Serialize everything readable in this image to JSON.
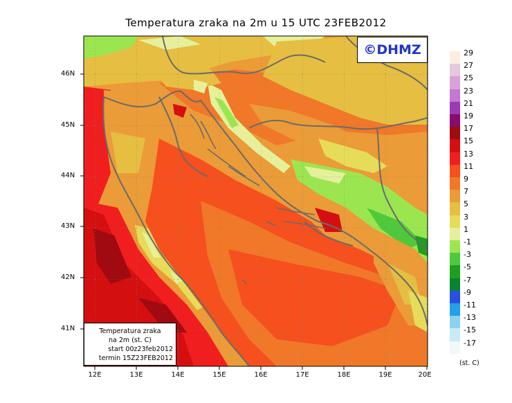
{
  "title": "Temperatura zraka na 2m u 15 UTC 23FEB2012",
  "logo": "©DHMZ",
  "info": {
    "line1": "Temperatura zraka",
    "line2": "na 2m (st. C)",
    "line3": "start 00z23feb2012",
    "line4": "termin 15Z23FEB2012"
  },
  "lat_labels": [
    "46N",
    "45N",
    "44N",
    "43N",
    "42N",
    "41N"
  ],
  "lon_labels": [
    "12E",
    "13E",
    "14E",
    "15E",
    "16E",
    "17E",
    "18E",
    "19E",
    "20E"
  ],
  "legend": {
    "unit": "(st. C)",
    "labels": [
      "29",
      "27",
      "25",
      "23",
      "21",
      "19",
      "17",
      "15",
      "13",
      "11",
      "9",
      "7",
      "5",
      "3",
      "1",
      "-1",
      "-3",
      "-5",
      "-7",
      "-9",
      "-11",
      "-13",
      "-15",
      "-17"
    ],
    "colors": [
      "#fbeee0",
      "#e6c8dc",
      "#d8a2d8",
      "#c478d0",
      "#9b3cb4",
      "#8a0a6e",
      "#a00a10",
      "#d40f10",
      "#f01e1e",
      "#f5501e",
      "#f07828",
      "#eb9b37",
      "#e6be41",
      "#e6dc5a",
      "#e6f09b",
      "#9be650",
      "#50c83c",
      "#1ea01e",
      "#0a8232",
      "#2850e6",
      "#23a0e6",
      "#8cd2f0",
      "#c8ebf5",
      "#f0f8fa"
    ]
  },
  "colors": {
    "sea_main": "#f5501e",
    "coast_sea": "#eb9b37",
    "croatia_land": "#f07828",
    "mountains": "#e6f09b",
    "south_warm": "#d40f10",
    "border": "#6b6b6b",
    "logo_text": "#2233cc"
  }
}
